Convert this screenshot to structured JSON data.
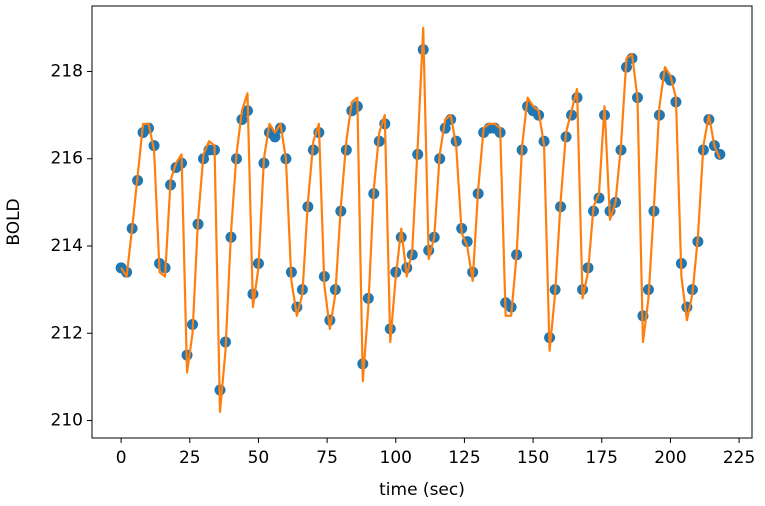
{
  "chart_data": {
    "type": "scatter",
    "xlabel": "time (sec)",
    "ylabel": "BOLD",
    "x": [
      0,
      2,
      4,
      6,
      8,
      10,
      12,
      14,
      16,
      18,
      20,
      22,
      24,
      26,
      28,
      30,
      32,
      34,
      36,
      38,
      40,
      42,
      44,
      46,
      48,
      50,
      52,
      54,
      56,
      58,
      60,
      62,
      64,
      66,
      68,
      70,
      72,
      74,
      76,
      78,
      80,
      82,
      84,
      86,
      88,
      90,
      92,
      94,
      96,
      98,
      100,
      102,
      104,
      106,
      108,
      110,
      112,
      114,
      116,
      118,
      120,
      122,
      124,
      126,
      128,
      130,
      132,
      134,
      136,
      138,
      140,
      142,
      144,
      146,
      148,
      150,
      152,
      154,
      156,
      158,
      160,
      162,
      164,
      166,
      168,
      170,
      172,
      174,
      176,
      178,
      180,
      182,
      184,
      186,
      188,
      190,
      192,
      194,
      196,
      198,
      200,
      202,
      204,
      206,
      208,
      210,
      212,
      214,
      216,
      218
    ],
    "series": [
      {
        "type": "scatter",
        "color": "#1f77b4",
        "values": [
          213.5,
          213.4,
          214.4,
          215.5,
          216.6,
          216.7,
          216.3,
          213.6,
          213.5,
          215.4,
          215.8,
          215.9,
          211.5,
          212.2,
          214.5,
          216.0,
          216.2,
          216.2,
          210.7,
          211.8,
          214.2,
          216.0,
          216.9,
          217.1,
          212.9,
          213.6,
          215.9,
          216.6,
          216.5,
          216.7,
          216.0,
          213.4,
          212.6,
          213.0,
          214.9,
          216.2,
          216.6,
          213.3,
          212.3,
          213.0,
          214.8,
          216.2,
          217.1,
          217.2,
          211.3,
          212.8,
          215.2,
          216.4,
          216.8,
          212.1,
          213.4,
          214.2,
          213.5,
          213.8,
          216.1,
          218.5,
          213.9,
          214.2,
          216.0,
          216.7,
          216.9,
          216.4,
          214.4,
          214.1,
          213.4,
          215.2,
          216.6,
          216.7,
          216.7,
          216.6,
          212.7,
          212.6,
          213.8,
          216.2,
          217.2,
          217.1,
          217.0,
          216.4,
          211.9,
          213.0,
          214.9,
          216.5,
          217.0,
          217.4,
          213.0,
          213.5,
          214.8,
          215.1,
          217.0,
          214.8,
          215.0,
          216.2,
          218.1,
          218.3,
          217.4,
          212.4,
          213.0,
          214.8,
          217.0,
          217.9,
          217.8,
          217.3,
          213.6,
          212.6,
          213.0,
          214.1,
          216.2,
          216.9,
          216.3,
          216.1
        ]
      },
      {
        "type": "line",
        "color": "#ff7f0e",
        "values": [
          213.5,
          213.3,
          214.4,
          215.6,
          216.8,
          216.8,
          216.2,
          213.4,
          213.3,
          215.5,
          215.9,
          216.1,
          211.1,
          212.0,
          214.6,
          216.1,
          216.4,
          216.3,
          210.2,
          211.6,
          214.3,
          216.1,
          217.1,
          217.5,
          212.6,
          213.5,
          216.0,
          216.8,
          216.6,
          216.8,
          216.0,
          213.2,
          212.4,
          212.9,
          215.0,
          216.4,
          216.8,
          213.1,
          212.1,
          212.9,
          214.9,
          216.4,
          217.3,
          217.4,
          210.9,
          212.6,
          215.3,
          216.6,
          217.0,
          211.8,
          213.3,
          214.4,
          213.3,
          213.9,
          216.3,
          219.0,
          213.7,
          214.2,
          216.1,
          216.9,
          217.0,
          216.3,
          214.3,
          214.0,
          213.2,
          215.3,
          216.7,
          216.8,
          216.8,
          216.7,
          212.4,
          212.4,
          213.8,
          216.3,
          217.4,
          217.2,
          217.1,
          216.3,
          211.6,
          212.9,
          215.0,
          216.6,
          217.1,
          217.6,
          212.8,
          213.4,
          214.9,
          215.2,
          217.2,
          214.6,
          215.0,
          216.3,
          218.3,
          218.4,
          217.4,
          211.8,
          212.8,
          214.9,
          217.2,
          218.1,
          217.9,
          217.4,
          213.3,
          212.3,
          212.9,
          214.2,
          216.3,
          217.0,
          216.3,
          216.0
        ]
      }
    ],
    "xlim": [
      -10.6,
      229.7
    ],
    "ylim": [
      209.6,
      219.5
    ],
    "xticks": [
      0,
      25,
      50,
      75,
      100,
      125,
      150,
      175,
      200,
      225
    ],
    "yticks": [
      210,
      212,
      214,
      216,
      218
    ]
  }
}
